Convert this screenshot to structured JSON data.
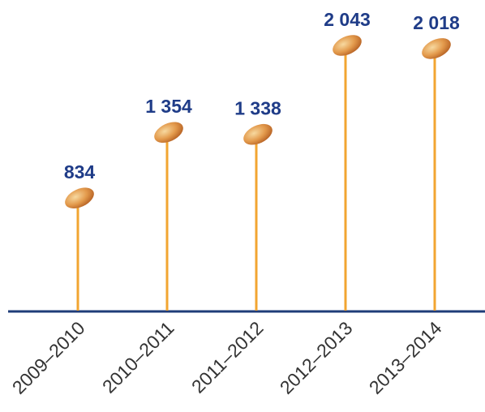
{
  "chart_data": {
    "type": "lollipop",
    "categories": [
      "2009–2010",
      "2010–2011",
      "2011–2012",
      "2012–2013",
      "2013–2014"
    ],
    "values": [
      834,
      1354,
      1338,
      2043,
      2018
    ],
    "value_labels": [
      "834",
      "1 354",
      "1 338",
      "2 043",
      "2 018"
    ],
    "color": "#f2a531"
  }
}
